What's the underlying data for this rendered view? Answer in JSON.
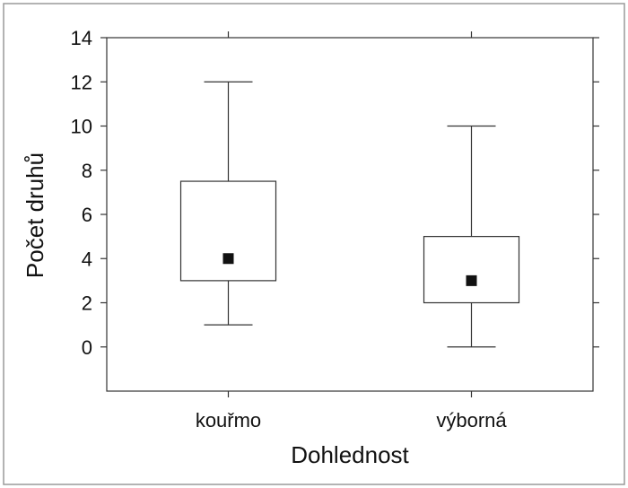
{
  "chart_data": {
    "type": "boxplot",
    "xlabel": "Dohlednost",
    "ylabel": "Počet druhů",
    "ylim": [
      -2,
      14
    ],
    "yticks": [
      0,
      2,
      4,
      6,
      8,
      10,
      12,
      14
    ],
    "grid": false,
    "categories": [
      "kouřmo",
      "výborná"
    ],
    "boxes": [
      {
        "category": "kouřmo",
        "min": 1,
        "q1": 3,
        "median": 4,
        "q3": 7.5,
        "max": 12
      },
      {
        "category": "výborná",
        "min": 0,
        "q1": 2,
        "median": 3,
        "q3": 5,
        "max": 10
      }
    ],
    "colors": {
      "box_fill": "#ffffff",
      "stroke": "#333333",
      "median_marker": "#111111"
    }
  }
}
